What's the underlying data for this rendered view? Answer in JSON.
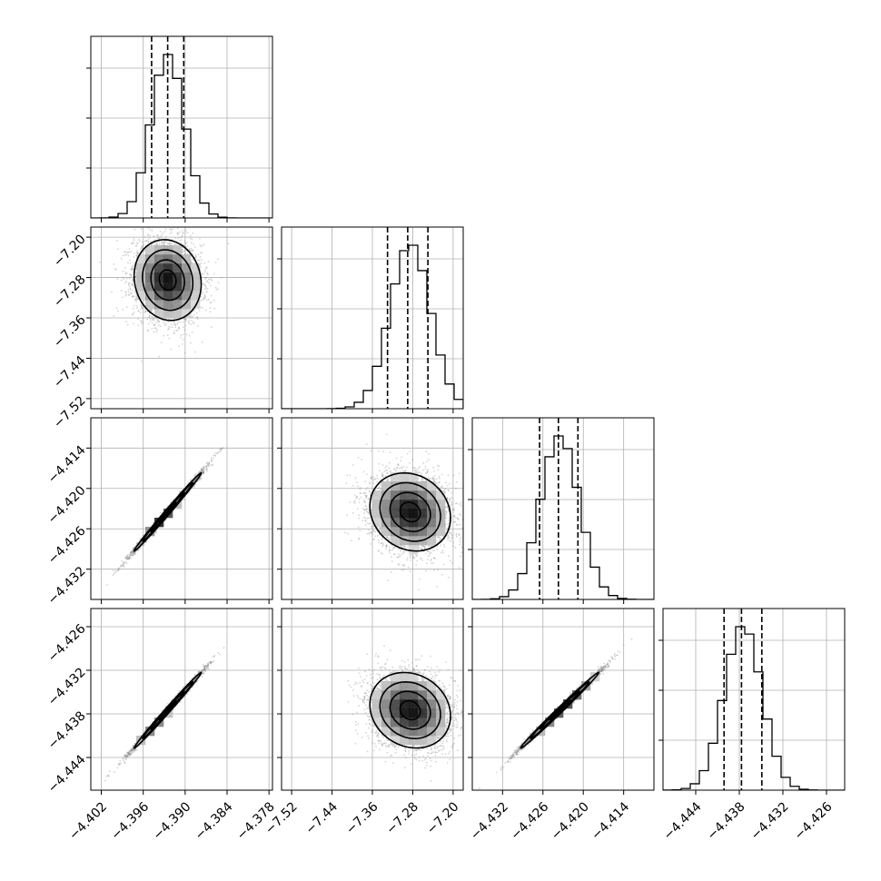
{
  "chart_data": {
    "type": "corner",
    "grid": true,
    "scatter_color": "#888888",
    "line_color": "#000000",
    "parameters": [
      {
        "index": 0,
        "range": [
          -4.4035,
          -4.3775
        ],
        "ticks": [
          -4.402,
          -4.396,
          -4.39,
          -4.384,
          -4.378
        ],
        "tick_labels": [
          "−4.402",
          "−4.396",
          "−4.390",
          "−4.384",
          "−4.378"
        ],
        "mean": -4.3925,
        "std": 0.0024,
        "quantiles": [
          -4.3948,
          -4.3925,
          -4.3902
        ]
      },
      {
        "index": 1,
        "range": [
          -7.54,
          -7.18
        ],
        "ticks": [
          -7.52,
          -7.44,
          -7.36,
          -7.28,
          -7.2
        ],
        "tick_labels": [
          "−7.52",
          "−7.44",
          "−7.36",
          "−7.28",
          "−7.20"
        ],
        "mean": -7.285,
        "std": 0.04,
        "quantiles": [
          -7.33,
          -7.29,
          -7.25
        ]
      },
      {
        "index": 2,
        "range": [
          -4.4365,
          -4.4095
        ],
        "ticks": [
          -4.432,
          -4.426,
          -4.42,
          -4.414
        ],
        "tick_labels": [
          "−4.432",
          "−4.426",
          "−4.420",
          "−4.414"
        ],
        "mean": -4.4235,
        "std": 0.0029,
        "quantiles": [
          -4.4265,
          -4.4237,
          -4.4208
        ]
      },
      {
        "index": 3,
        "range": [
          -4.4485,
          -4.4235
        ],
        "ticks": [
          -4.444,
          -4.438,
          -4.432,
          -4.426
        ],
        "tick_labels": [
          "−4.444",
          "−4.438",
          "−4.432",
          "−4.426"
        ],
        "mean": -4.4375,
        "std": 0.0026,
        "quantiles": [
          -4.4401,
          -4.4377,
          -4.4349
        ]
      }
    ],
    "correlations": [
      {
        "i": 1,
        "j": 0,
        "rho": -0.1
      },
      {
        "i": 2,
        "j": 0,
        "rho": 0.995
      },
      {
        "i": 2,
        "j": 1,
        "rho": -0.15
      },
      {
        "i": 3,
        "j": 0,
        "rho": 0.995
      },
      {
        "i": 3,
        "j": 1,
        "rho": -0.15
      },
      {
        "i": 3,
        "j": 2,
        "rho": 0.995
      }
    ]
  }
}
